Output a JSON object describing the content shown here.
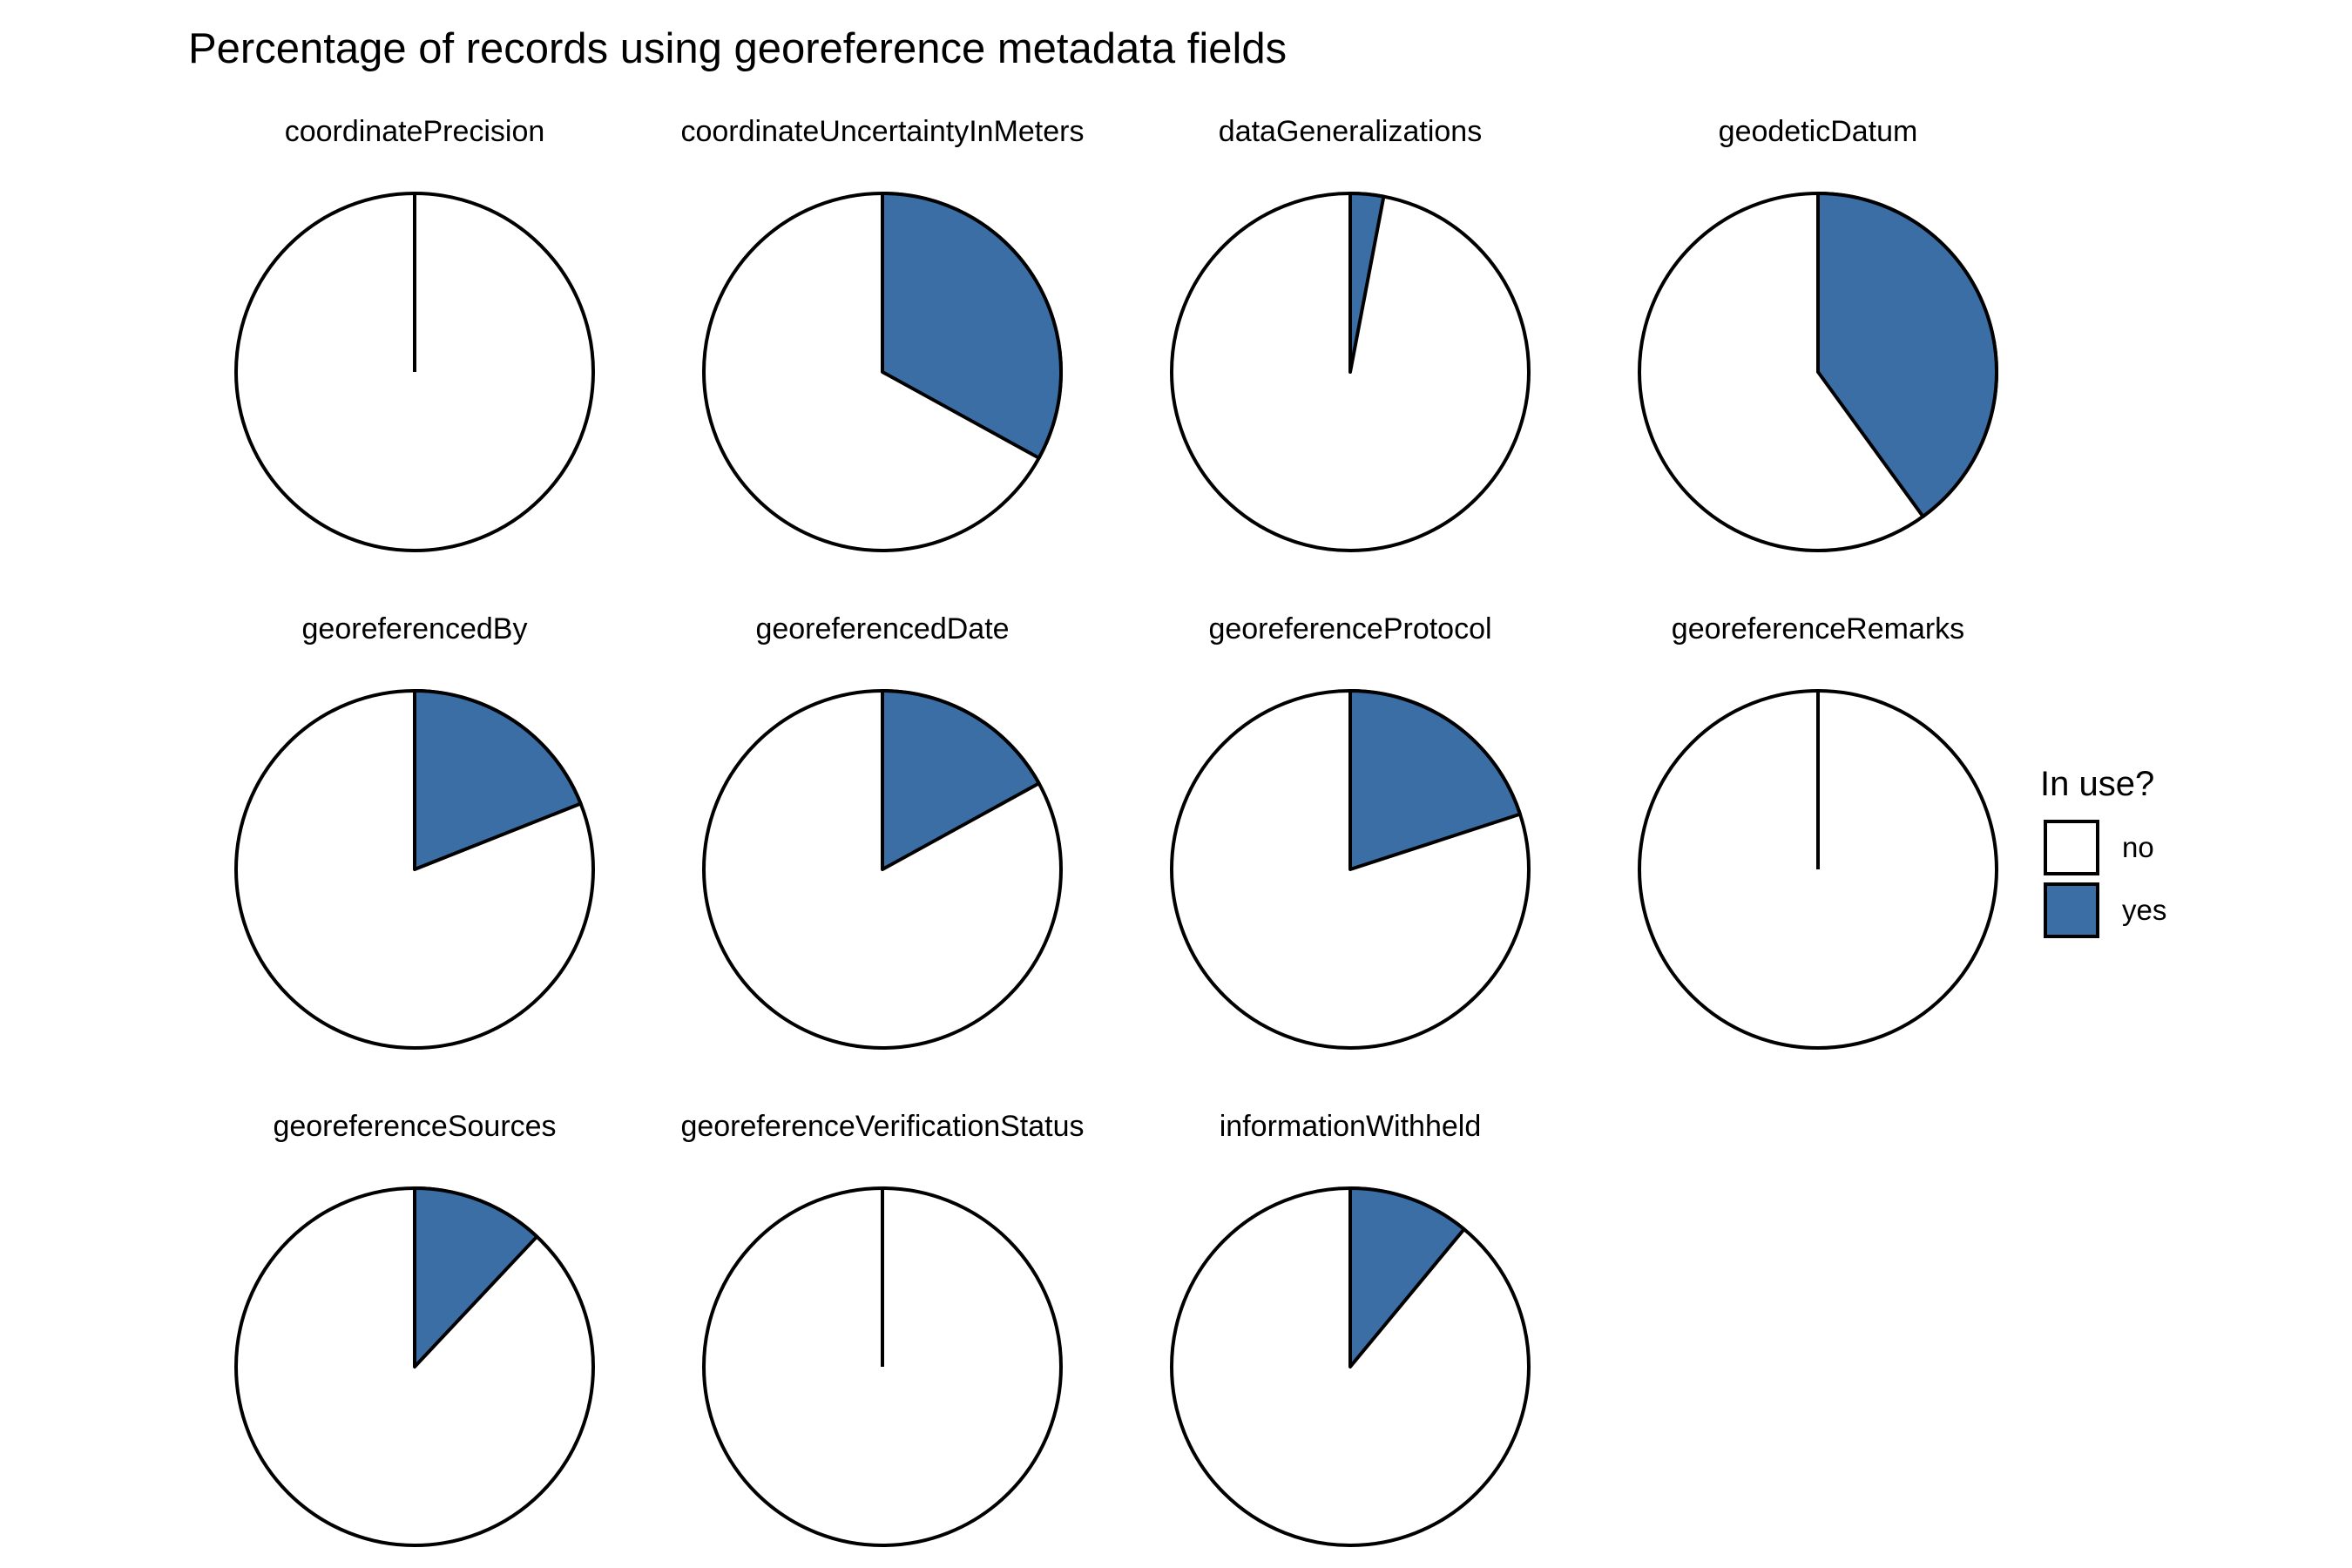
{
  "chart_data": {
    "type": "pie",
    "title": "Percentage of records using georeference metadata fields",
    "legend": {
      "title": "In use?",
      "placement": "right",
      "entries": [
        {
          "label": "no",
          "color": "#ffffff"
        },
        {
          "label": "yes",
          "color": "#3a6ea5"
        }
      ]
    },
    "panels": [
      {
        "name": "coordinatePrecision",
        "yes_pct": 0
      },
      {
        "name": "coordinateUncertaintyInMeters",
        "yes_pct": 33
      },
      {
        "name": "dataGeneralizations",
        "yes_pct": 3
      },
      {
        "name": "geodeticDatum",
        "yes_pct": 40
      },
      {
        "name": "georeferencedBy",
        "yes_pct": 19
      },
      {
        "name": "georeferencedDate",
        "yes_pct": 17
      },
      {
        "name": "georeferenceProtocol",
        "yes_pct": 20
      },
      {
        "name": "georeferenceRemarks",
        "yes_pct": 0
      },
      {
        "name": "georeferenceSources",
        "yes_pct": 12
      },
      {
        "name": "georeferenceVerificationStatus",
        "yes_pct": 0
      },
      {
        "name": "informationWithheld",
        "yes_pct": 11
      }
    ]
  }
}
